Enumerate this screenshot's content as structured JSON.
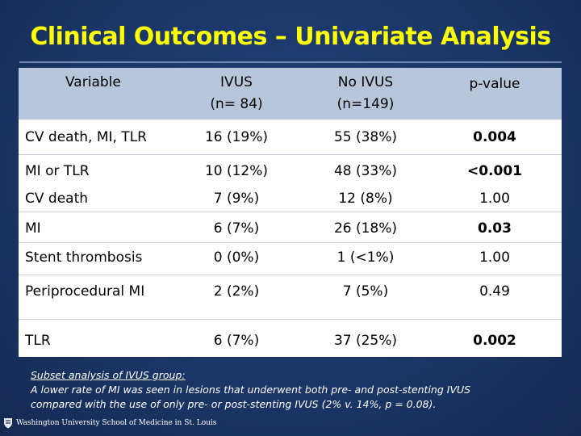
{
  "slide": {
    "title": "Clinical Outcomes – Univariate Analysis"
  },
  "table": {
    "headers": {
      "variable": "Variable",
      "ivus_line1": "IVUS",
      "ivus_line2": "(n= 84)",
      "noivus_line1": "No IVUS",
      "noivus_line2": "(n=149)",
      "pvalue": "p-value"
    },
    "rows": [
      {
        "variable": "CV death, MI, TLR",
        "ivus": "16 (19%)",
        "no_ivus": "55 (38%)",
        "p": "0.004",
        "p_bold": true
      },
      {
        "variable": "MI or TLR",
        "ivus": "10 (12%)",
        "no_ivus": "48 (33%)",
        "p": "<0.001",
        "p_bold": true
      },
      {
        "variable": "CV death",
        "ivus": "7 (9%)",
        "no_ivus": "12 (8%)",
        "p": "1.00",
        "p_bold": false
      },
      {
        "variable": "MI",
        "ivus": "6 (7%)",
        "no_ivus": "26 (18%)",
        "p": "0.03",
        "p_bold": true
      },
      {
        "variable": "Stent thrombosis",
        "ivus": "0 (0%)",
        "no_ivus": "1 (<1%)",
        "p": "1.00",
        "p_bold": false
      },
      {
        "variable": "Periprocedural MI",
        "ivus": "2 (2%)",
        "no_ivus": "7 (5%)",
        "p": "0.49",
        "p_bold": false
      },
      {
        "variable": "TLR",
        "ivus": "6 (7%)",
        "no_ivus": "37 (25%)",
        "p": "0.002",
        "p_bold": true
      }
    ]
  },
  "footnote": {
    "heading": "Subset analysis of IVUS group:",
    "line1": "A lower rate of MI was seen in lesions that underwent both pre- and post-stenting  IVUS",
    "line2": "compared with the use of only pre- or post-stenting IVUS (2% v. 14%, p = 0.08)."
  },
  "logo": {
    "text": "Washington University School of Medicine in St. Louis"
  },
  "colors": {
    "background": "#1a3566",
    "title": "#ffff00",
    "header_band": "#b8c6dc"
  }
}
